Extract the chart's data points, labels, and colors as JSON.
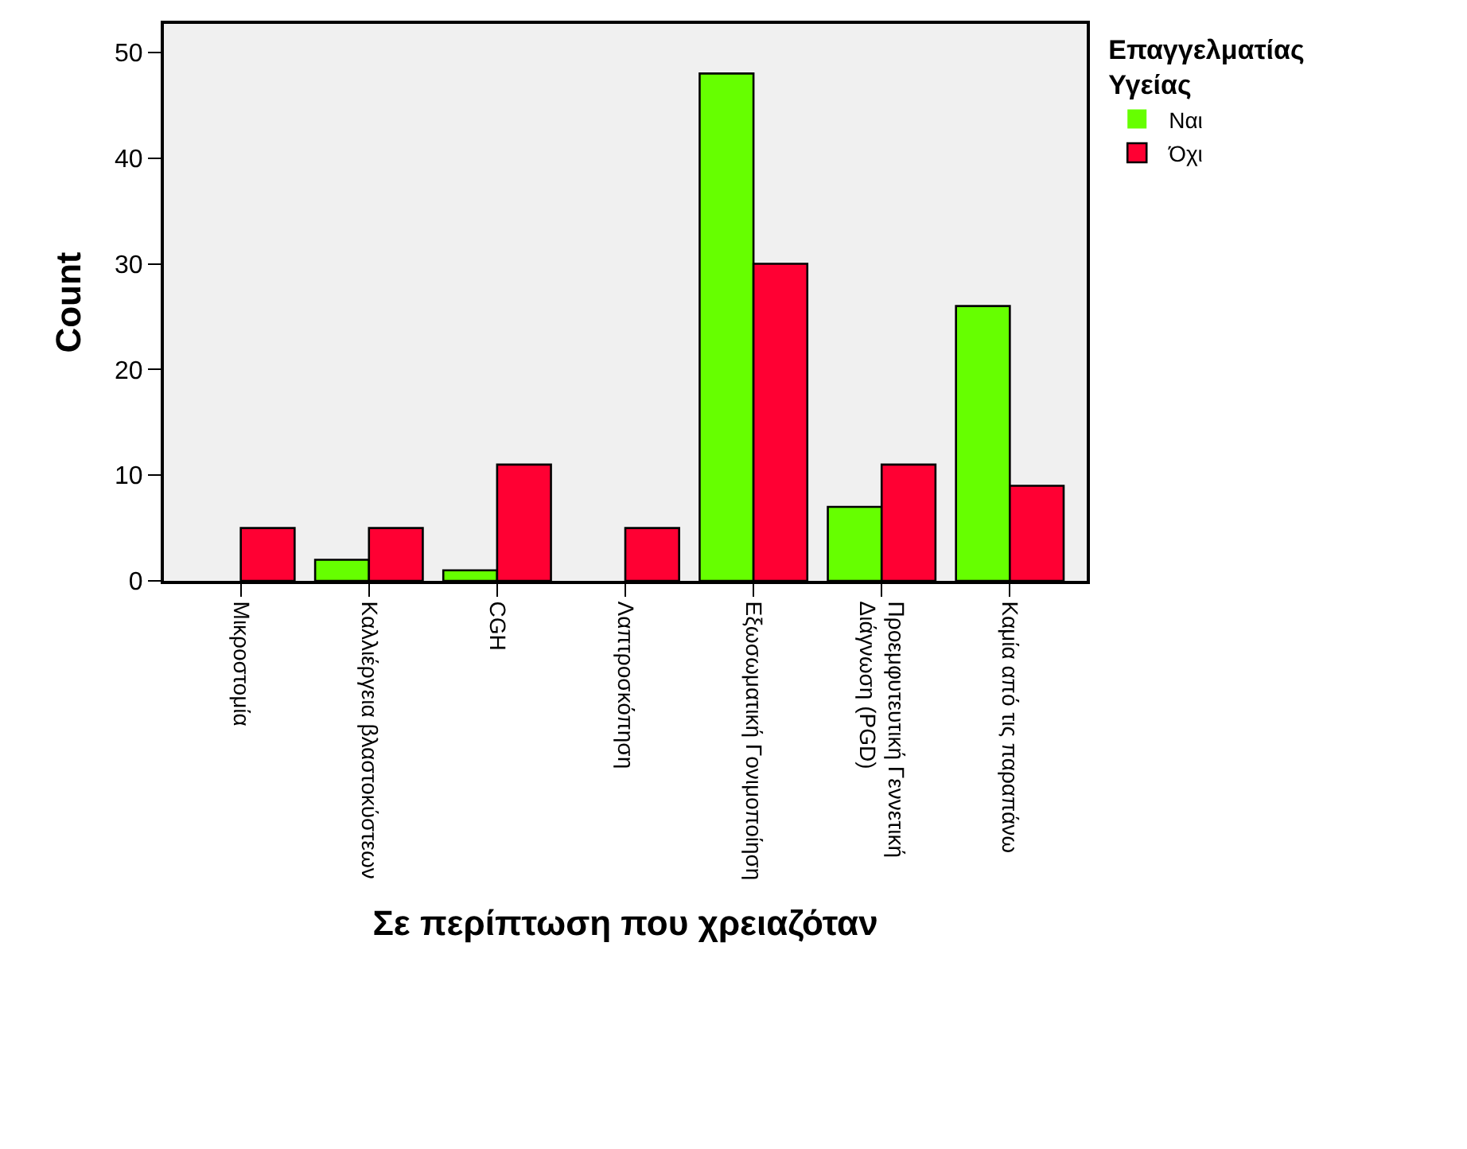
{
  "chart_data": {
    "type": "bar",
    "xlabel": "Σε περίπτωση που χρειαζόταν",
    "ylabel": "Count",
    "legend_title": "Επαγγελματίας\nΥγείας",
    "categories": [
      "Μικροστομία",
      "Καλλιέργεια βλαστοκύστεων",
      "CGH",
      "Λαπτροσκόπηση",
      "Εξωσωματική Γονιμοποίηση",
      "Προεμφυτευτική Γεννετική\nΔιάγνωση (PGD)",
      "Καμία από τις παραπάνω"
    ],
    "series": [
      {
        "name": "Ναι",
        "color": "#66ff00",
        "values": [
          0,
          2,
          1,
          0,
          48,
          7,
          26
        ]
      },
      {
        "name": "Όχι",
        "color": "#ff0033",
        "values": [
          5,
          5,
          11,
          5,
          30,
          11,
          9
        ]
      }
    ],
    "ylim": [
      0,
      52.7
    ],
    "yticks": [
      0,
      10,
      20,
      30,
      40,
      50
    ],
    "grid": false,
    "legend": "top right"
  }
}
